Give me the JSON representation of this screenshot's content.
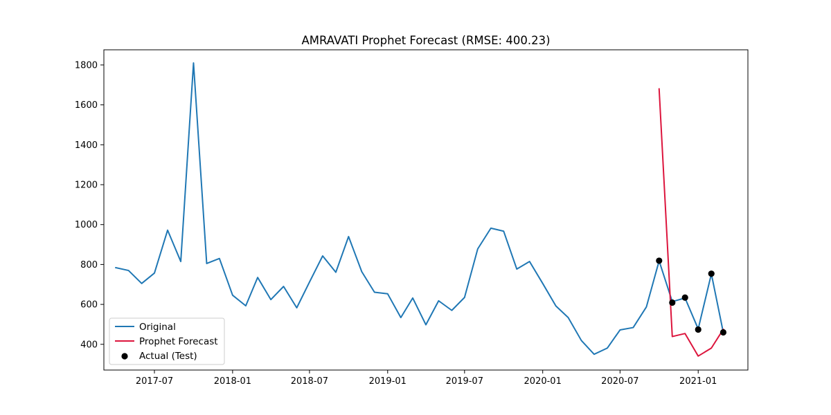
{
  "chart_data": {
    "type": "line",
    "title": "AMRAVATI Prophet Forecast (RMSE: 400.23)",
    "xlabel": "",
    "ylabel": "",
    "xlim": [
      "2017-03-04",
      "2021-04-28"
    ],
    "ylim": [
      271,
      1876
    ],
    "grid": false,
    "legend_position": "lower-left",
    "x_ticks": [
      "2017-07-01",
      "2018-01-01",
      "2018-07-01",
      "2019-01-01",
      "2019-07-01",
      "2020-01-01",
      "2020-07-01",
      "2021-01-01"
    ],
    "x_tick_labels": [
      "2017-07",
      "2018-01",
      "2018-07",
      "2019-01",
      "2019-07",
      "2020-01",
      "2020-07",
      "2021-01"
    ],
    "y_ticks": [
      400,
      600,
      800,
      1000,
      1200,
      1400,
      1600,
      1800
    ],
    "y_tick_labels": [
      "400",
      "600",
      "800",
      "1000",
      "1200",
      "1400",
      "1600",
      "1800"
    ],
    "series": [
      {
        "name": "Original",
        "kind": "line",
        "color": "#1f77b4",
        "x": [
          "2017-04-01",
          "2017-05-01",
          "2017-06-01",
          "2017-07-01",
          "2017-08-01",
          "2017-09-01",
          "2017-10-01",
          "2017-11-01",
          "2017-12-01",
          "2018-01-01",
          "2018-02-01",
          "2018-03-01",
          "2018-04-01",
          "2018-05-01",
          "2018-06-01",
          "2018-07-01",
          "2018-08-01",
          "2018-09-01",
          "2018-10-01",
          "2018-11-01",
          "2018-12-01",
          "2019-01-01",
          "2019-02-01",
          "2019-03-01",
          "2019-04-01",
          "2019-05-01",
          "2019-06-01",
          "2019-07-01",
          "2019-08-01",
          "2019-09-01",
          "2019-10-01",
          "2019-11-01",
          "2019-12-01",
          "2020-01-01",
          "2020-02-01",
          "2020-03-01",
          "2020-04-01",
          "2020-05-01",
          "2020-06-01",
          "2020-07-01",
          "2020-08-01",
          "2020-09-01",
          "2020-10-01",
          "2020-11-01",
          "2020-12-01",
          "2021-01-01",
          "2021-02-01",
          "2021-03-01"
        ],
        "values": [
          784,
          770,
          705,
          757,
          972,
          815,
          1810,
          805,
          830,
          646,
          593,
          735,
          624,
          690,
          583,
          712,
          843,
          761,
          940,
          764,
          661,
          653,
          534,
          632,
          498,
          618,
          570,
          635,
          878,
          982,
          967,
          777,
          815,
          705,
          592,
          534,
          419,
          350,
          381,
          472,
          484,
          587,
          818,
          614,
          632,
          477,
          753,
          460
        ]
      },
      {
        "name": "Prophet Forecast",
        "kind": "line",
        "color": "#dc143c",
        "x": [
          "2020-10-01",
          "2020-11-01",
          "2020-12-01",
          "2021-01-01",
          "2021-02-01",
          "2021-03-01"
        ],
        "values": [
          1680,
          439,
          454,
          341,
          381,
          475
        ]
      },
      {
        "name": "Actual (Test)",
        "kind": "scatter",
        "color": "#000000",
        "x": [
          "2020-10-01",
          "2020-11-01",
          "2020-12-01",
          "2021-01-01",
          "2021-02-01",
          "2021-03-01"
        ],
        "values": [
          819,
          609,
          634,
          474,
          754,
          460
        ]
      }
    ]
  }
}
